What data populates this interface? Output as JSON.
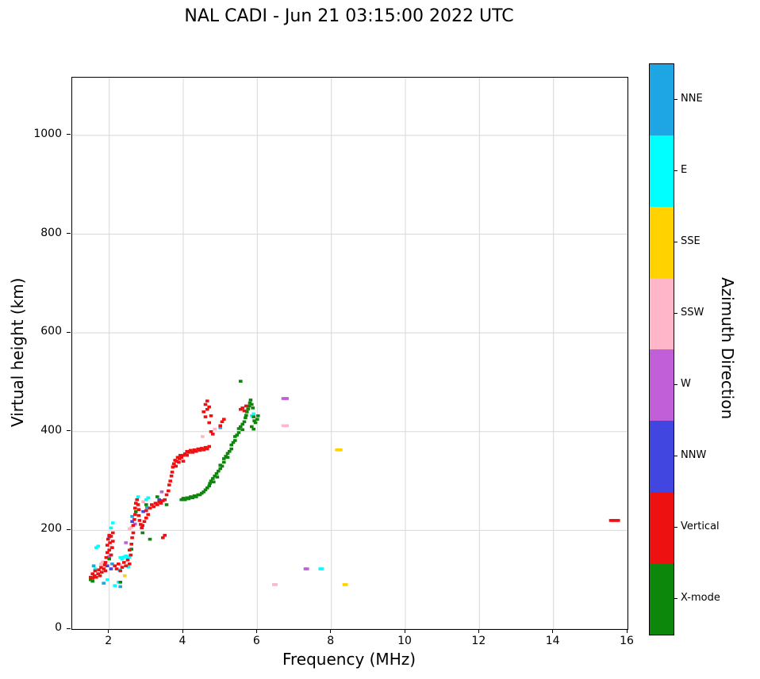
{
  "chart_data": {
    "type": "scatter",
    "title": "NAL CADI - Jun 21 03:15:00 2022 UTC",
    "xlabel": "Frequency (MHz)",
    "ylabel": "Virtual height (km)",
    "xlim": [
      1,
      16
    ],
    "ylim": [
      0,
      1117
    ],
    "xticks": [
      2,
      4,
      6,
      8,
      10,
      12,
      14,
      16
    ],
    "yticks": [
      0,
      200,
      400,
      600,
      800,
      1000
    ],
    "grid": true,
    "grid_color": "#d8d8d8",
    "legend": {
      "title": "Azimuth Direction",
      "position": "right-colorbar",
      "entries": [
        {
          "label": "NNE",
          "color": "#1ea5e3"
        },
        {
          "label": "E",
          "color": "#00ffff"
        },
        {
          "label": "SSE",
          "color": "#ffd200"
        },
        {
          "label": "SSW",
          "color": "#ffb6c8"
        },
        {
          "label": "W",
          "color": "#c05fd8"
        },
        {
          "label": "NNW",
          "color": "#4146e0"
        },
        {
          "label": "Vertical",
          "color": "#ee1111"
        },
        {
          "label": "X-mode",
          "color": "#0c870c"
        }
      ]
    },
    "series": [
      {
        "name": "NNE",
        "color": "#1ea5e3",
        "points": [
          [
            1.85,
            93
          ],
          [
            2.3,
            86
          ],
          [
            2.62,
            228
          ],
          [
            3.02,
            246
          ],
          [
            5.0,
            408
          ],
          [
            2.08,
            132
          ],
          [
            1.58,
            128
          ]
        ]
      },
      {
        "name": "E",
        "color": "#00ffff",
        "points": [
          [
            1.62,
            122
          ],
          [
            1.65,
            165
          ],
          [
            1.7,
            168
          ],
          [
            1.95,
            100
          ],
          [
            2.05,
            205
          ],
          [
            2.1,
            215
          ],
          [
            2.25,
            95
          ],
          [
            2.28,
            120
          ],
          [
            2.3,
            145
          ],
          [
            2.35,
            142
          ],
          [
            2.4,
            146
          ],
          [
            2.45,
            148
          ],
          [
            2.5,
            143
          ],
          [
            2.52,
            126
          ],
          [
            2.55,
            146
          ],
          [
            3.0,
            262
          ],
          [
            3.05,
            266
          ],
          [
            2.78,
            268
          ],
          [
            5.85,
            432
          ],
          [
            5.9,
            436
          ],
          [
            7.7,
            122
          ],
          [
            7.75,
            122
          ],
          [
            2.15,
            88
          ]
        ]
      },
      {
        "name": "SSE",
        "color": "#ffd200",
        "points": [
          [
            8.15,
            363
          ],
          [
            8.2,
            363
          ],
          [
            8.25,
            363
          ],
          [
            8.35,
            90
          ],
          [
            8.4,
            90
          ],
          [
            2.42,
            108
          ]
        ]
      },
      {
        "name": "SSW",
        "color": "#ffb6c8",
        "points": [
          [
            1.78,
            132
          ],
          [
            1.82,
            136
          ],
          [
            2.02,
            166
          ],
          [
            2.55,
            203
          ],
          [
            2.6,
            206
          ],
          [
            2.92,
            258
          ],
          [
            3.72,
            332
          ],
          [
            4.52,
            390
          ],
          [
            4.85,
            405
          ],
          [
            6.7,
            412
          ],
          [
            6.75,
            412
          ],
          [
            6.8,
            412
          ],
          [
            6.45,
            90
          ],
          [
            6.5,
            90
          ],
          [
            2.3,
            130
          ]
        ]
      },
      {
        "name": "W",
        "color": "#c05fd8",
        "points": [
          [
            2.0,
            147
          ],
          [
            2.05,
            150
          ],
          [
            2.7,
            213
          ],
          [
            3.42,
            278
          ],
          [
            6.7,
            467
          ],
          [
            6.75,
            467
          ],
          [
            6.8,
            467
          ],
          [
            7.3,
            122
          ],
          [
            7.35,
            122
          ],
          [
            2.45,
            175
          ]
        ]
      },
      {
        "name": "NNW",
        "color": "#4146e0",
        "points": [
          [
            1.95,
            128
          ],
          [
            2.05,
            122
          ],
          [
            2.62,
            218
          ],
          [
            2.92,
            238
          ],
          [
            2.0,
            187
          ],
          [
            3.35,
            262
          ]
        ]
      },
      {
        "name": "X-mode",
        "color": "#0c870c",
        "points": [
          [
            1.5,
            100
          ],
          [
            1.55,
            97
          ],
          [
            2.0,
            142
          ],
          [
            2.3,
            95
          ],
          [
            2.6,
            162
          ],
          [
            2.9,
            195
          ],
          [
            3.1,
            182
          ],
          [
            2.72,
            238
          ],
          [
            3.0,
            252
          ],
          [
            3.3,
            268
          ],
          [
            3.55,
            252
          ],
          [
            3.95,
            262
          ],
          [
            4.0,
            265
          ],
          [
            4.05,
            262
          ],
          [
            4.1,
            266
          ],
          [
            4.15,
            264
          ],
          [
            4.2,
            268
          ],
          [
            4.25,
            266
          ],
          [
            4.3,
            270
          ],
          [
            4.35,
            268
          ],
          [
            4.4,
            272
          ],
          [
            4.45,
            272
          ],
          [
            4.5,
            275
          ],
          [
            4.55,
            278
          ],
          [
            4.6,
            282
          ],
          [
            4.65,
            286
          ],
          [
            4.7,
            290
          ],
          [
            4.72,
            295
          ],
          [
            4.75,
            300
          ],
          [
            4.8,
            305
          ],
          [
            4.82,
            298
          ],
          [
            4.85,
            310
          ],
          [
            4.9,
            315
          ],
          [
            4.92,
            308
          ],
          [
            4.95,
            320
          ],
          [
            5.0,
            325
          ],
          [
            5.0,
            332
          ],
          [
            5.05,
            330
          ],
          [
            5.1,
            338
          ],
          [
            5.1,
            345
          ],
          [
            5.15,
            350
          ],
          [
            5.2,
            348
          ],
          [
            5.2,
            356
          ],
          [
            5.25,
            360
          ],
          [
            5.3,
            365
          ],
          [
            5.3,
            373
          ],
          [
            5.35,
            378
          ],
          [
            5.4,
            382
          ],
          [
            5.4,
            390
          ],
          [
            5.45,
            393
          ],
          [
            5.5,
            398
          ],
          [
            5.5,
            406
          ],
          [
            5.55,
            410
          ],
          [
            5.6,
            404
          ],
          [
            5.6,
            415
          ],
          [
            5.65,
            420
          ],
          [
            5.68,
            428
          ],
          [
            5.7,
            433
          ],
          [
            5.72,
            440
          ],
          [
            5.75,
            446
          ],
          [
            5.78,
            452
          ],
          [
            5.8,
            458
          ],
          [
            5.82,
            464
          ],
          [
            5.85,
            455
          ],
          [
            5.88,
            448
          ],
          [
            5.9,
            430
          ],
          [
            5.92,
            422
          ],
          [
            5.95,
            418
          ],
          [
            6.0,
            425
          ],
          [
            6.02,
            432
          ],
          [
            5.55,
            502
          ],
          [
            5.85,
            410
          ],
          [
            5.9,
            405
          ]
        ]
      },
      {
        "name": "Vertical",
        "color": "#ee1111",
        "points": [
          [
            1.5,
            105
          ],
          [
            1.55,
            103
          ],
          [
            1.55,
            112
          ],
          [
            1.6,
            108
          ],
          [
            1.62,
            118
          ],
          [
            1.65,
            105
          ],
          [
            1.7,
            112
          ],
          [
            1.72,
            120
          ],
          [
            1.75,
            108
          ],
          [
            1.78,
            125
          ],
          [
            1.8,
            115
          ],
          [
            1.85,
            122
          ],
          [
            1.88,
            130
          ],
          [
            1.9,
            118
          ],
          [
            1.9,
            135
          ],
          [
            1.92,
            145
          ],
          [
            1.95,
            155
          ],
          [
            1.95,
            170
          ],
          [
            1.97,
            182
          ],
          [
            2.0,
            190
          ],
          [
            2.0,
            160
          ],
          [
            2.02,
            175
          ],
          [
            2.05,
            188
          ],
          [
            2.05,
            150
          ],
          [
            2.08,
            165
          ],
          [
            2.1,
            178
          ],
          [
            2.1,
            195
          ],
          [
            2.15,
            128
          ],
          [
            2.2,
            122
          ],
          [
            2.25,
            132
          ],
          [
            2.3,
            118
          ],
          [
            2.35,
            125
          ],
          [
            2.4,
            135
          ],
          [
            2.45,
            128
          ],
          [
            2.5,
            140
          ],
          [
            2.55,
            132
          ],
          [
            2.58,
            150
          ],
          [
            2.55,
            160
          ],
          [
            2.6,
            172
          ],
          [
            2.62,
            185
          ],
          [
            2.65,
            195
          ],
          [
            2.65,
            210
          ],
          [
            2.68,
            222
          ],
          [
            2.7,
            232
          ],
          [
            2.7,
            245
          ],
          [
            2.72,
            255
          ],
          [
            2.75,
            262
          ],
          [
            2.78,
            252
          ],
          [
            2.8,
            242
          ],
          [
            2.8,
            230
          ],
          [
            2.82,
            220
          ],
          [
            2.85,
            212
          ],
          [
            2.88,
            205
          ],
          [
            2.9,
            210
          ],
          [
            2.95,
            218
          ],
          [
            3.0,
            225
          ],
          [
            3.0,
            240
          ],
          [
            3.05,
            232
          ],
          [
            3.1,
            245
          ],
          [
            3.15,
            252
          ],
          [
            3.2,
            248
          ],
          [
            3.25,
            255
          ],
          [
            3.3,
            252
          ],
          [
            3.35,
            258
          ],
          [
            3.4,
            255
          ],
          [
            3.45,
            260
          ],
          [
            3.5,
            262
          ],
          [
            3.45,
            185
          ],
          [
            3.5,
            190
          ],
          [
            3.55,
            272
          ],
          [
            3.6,
            280
          ],
          [
            3.62,
            292
          ],
          [
            3.65,
            300
          ],
          [
            3.68,
            310
          ],
          [
            3.7,
            318
          ],
          [
            3.72,
            328
          ],
          [
            3.75,
            335
          ],
          [
            3.78,
            342
          ],
          [
            3.8,
            330
          ],
          [
            3.82,
            340
          ],
          [
            3.85,
            348
          ],
          [
            3.88,
            338
          ],
          [
            3.9,
            345
          ],
          [
            3.92,
            352
          ],
          [
            3.95,
            348
          ],
          [
            4.0,
            352
          ],
          [
            4.0,
            340
          ],
          [
            4.05,
            355
          ],
          [
            4.1,
            352
          ],
          [
            4.1,
            360
          ],
          [
            4.15,
            358
          ],
          [
            4.2,
            362
          ],
          [
            4.25,
            358
          ],
          [
            4.3,
            363
          ],
          [
            4.35,
            360
          ],
          [
            4.4,
            365
          ],
          [
            4.45,
            362
          ],
          [
            4.5,
            366
          ],
          [
            4.55,
            363
          ],
          [
            4.6,
            368
          ],
          [
            4.65,
            365
          ],
          [
            4.7,
            370
          ],
          [
            4.55,
            440
          ],
          [
            4.6,
            455
          ],
          [
            4.6,
            430
          ],
          [
            4.65,
            462
          ],
          [
            4.65,
            445
          ],
          [
            4.7,
            450
          ],
          [
            4.7,
            418
          ],
          [
            4.75,
            432
          ],
          [
            4.75,
            400
          ],
          [
            4.8,
            395
          ],
          [
            5.0,
            412
          ],
          [
            5.05,
            420
          ],
          [
            5.1,
            425
          ],
          [
            5.55,
            445
          ],
          [
            5.6,
            448
          ],
          [
            5.65,
            442
          ],
          [
            5.7,
            452
          ],
          [
            15.55,
            220
          ],
          [
            15.6,
            220
          ],
          [
            15.65,
            220
          ],
          [
            15.7,
            220
          ],
          [
            15.75,
            220
          ]
        ]
      }
    ]
  }
}
